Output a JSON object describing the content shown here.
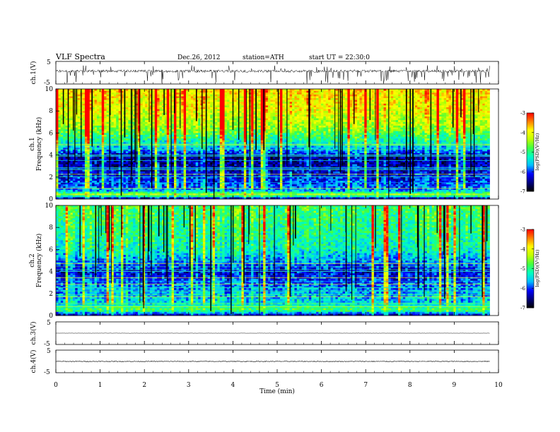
{
  "header": {
    "title": "VLF  Spectra",
    "date": "Dec.26, 2012",
    "station": "station=ATH",
    "start": "start  UT  =   22:30:0"
  },
  "colors": {
    "waveform": "#000000",
    "axes": "#000000",
    "background": "#ffffff",
    "colormap": [
      "#000000",
      "#00007f",
      "#0000ff",
      "#00bfff",
      "#00ffbf",
      "#40ff40",
      "#c0ff00",
      "#ffff00",
      "#ff8000",
      "#ff0000",
      "#ffffff"
    ]
  },
  "chart_data": [
    {
      "type": "line",
      "panel": "ch1-waveform",
      "ylabel": "ch.1(V)",
      "y_ticks": [
        "5",
        "-5"
      ],
      "ylim": [
        -5,
        5
      ],
      "xlim": [
        0,
        9.8
      ],
      "baseline": 0.7,
      "amplitude": 0.6
    },
    {
      "type": "heatmap",
      "panel": "ch1-spectrogram",
      "ylabel": [
        "ch.1",
        "Frequency  (kHz)"
      ],
      "y_ticks": [
        "0",
        "2",
        "4",
        "6",
        "8",
        "10"
      ],
      "ylim": [
        0,
        10
      ],
      "xlim": [
        0,
        9.8
      ],
      "colorbar": {
        "label": "log(PSD)(V²/Hz)",
        "ticks": [
          "-3",
          "-4",
          "-5",
          "-6",
          "-7"
        ],
        "range": [
          -7,
          -3
        ]
      },
      "profile": [
        {
          "f": 0.0,
          "v": -6.7
        },
        {
          "f": 0.4,
          "v": -4.2
        },
        {
          "f": 0.7,
          "v": -5.6
        },
        {
          "f": 1.0,
          "v": -5.8
        },
        {
          "f": 2.0,
          "v": -6.1
        },
        {
          "f": 3.0,
          "v": -6.3
        },
        {
          "f": 3.8,
          "v": -6.4
        },
        {
          "f": 4.5,
          "v": -5.6
        },
        {
          "f": 5.5,
          "v": -5.0
        },
        {
          "f": 6.5,
          "v": -4.4
        },
        {
          "f": 8.0,
          "v": -4.0
        },
        {
          "f": 10.0,
          "v": -3.8
        }
      ]
    },
    {
      "type": "heatmap",
      "panel": "ch2-spectrogram",
      "ylabel": [
        "ch.2",
        "Frequency  (kHz)"
      ],
      "y_ticks": [
        "0",
        "2",
        "4",
        "6",
        "8",
        "10"
      ],
      "ylim": [
        0,
        10
      ],
      "xlim": [
        0,
        9.8
      ],
      "colorbar": {
        "label": "log(PSD)(V²/Hz)",
        "ticks": [
          "-3",
          "-4",
          "-5",
          "-6",
          "-7"
        ],
        "range": [
          -7,
          -3
        ]
      },
      "profile": [
        {
          "f": 0.0,
          "v": -6.5
        },
        {
          "f": 0.5,
          "v": -4.8
        },
        {
          "f": 1.0,
          "v": -5.4
        },
        {
          "f": 2.0,
          "v": -5.6
        },
        {
          "f": 3.0,
          "v": -5.9
        },
        {
          "f": 4.0,
          "v": -6.2
        },
        {
          "f": 5.0,
          "v": -5.7
        },
        {
          "f": 6.0,
          "v": -5.2
        },
        {
          "f": 8.0,
          "v": -5.0
        },
        {
          "f": 10.0,
          "v": -4.8
        }
      ]
    },
    {
      "type": "line",
      "panel": "ch3-waveform",
      "ylabel": "ch.3(V)",
      "y_ticks": [
        "5",
        "-5"
      ],
      "ylim": [
        -5,
        5
      ],
      "xlim": [
        0,
        9.8
      ],
      "baseline": 0.0,
      "amplitude": 0.05
    },
    {
      "type": "line",
      "panel": "ch4-waveform",
      "ylabel": "ch.4(V)",
      "y_ticks": [
        "5",
        "-5"
      ],
      "ylim": [
        -5,
        5
      ],
      "xlim": [
        0,
        9.8
      ],
      "baseline": 0.0,
      "amplitude": 0.15
    }
  ],
  "x_axis": {
    "label": "Time  (min)",
    "ticks": [
      "0",
      "1",
      "2",
      "3",
      "4",
      "5",
      "6",
      "7",
      "8",
      "9",
      "10"
    ],
    "range": [
      0,
      10
    ]
  }
}
